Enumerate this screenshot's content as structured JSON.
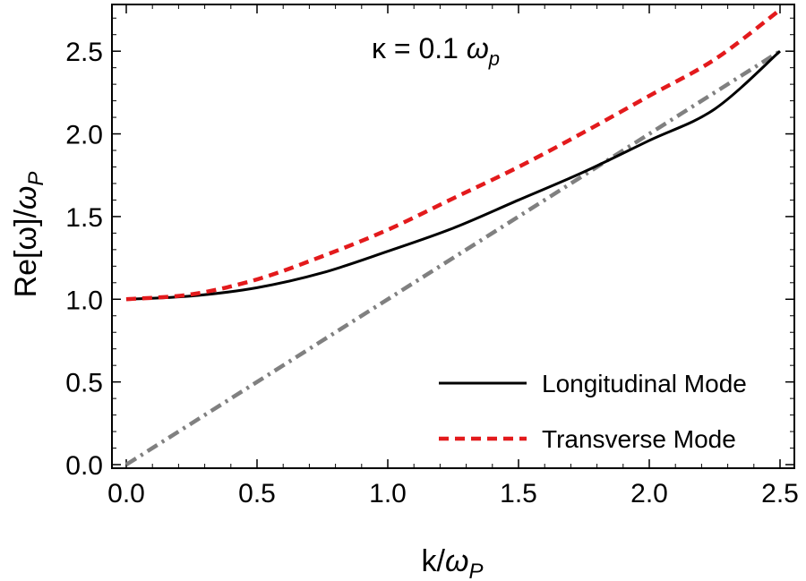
{
  "chart_data": {
    "type": "line",
    "xlabel_main": "k/",
    "xlabel_sym": "ω",
    "xlabel_sub": "P",
    "ylabel_main": "Re[ω]/",
    "ylabel_sym": "ω",
    "ylabel_sub": "P",
    "annotation": {
      "prefix": "κ = 0.1 ",
      "sym": "ω",
      "sub": "p"
    },
    "xlim": [
      0,
      2.5
    ],
    "ylim": [
      0,
      2.75
    ],
    "xticks": [
      "0.0",
      "0.5",
      "1.0",
      "1.5",
      "2.0",
      "2.5"
    ],
    "yticks": [
      "0.0",
      "0.5",
      "1.0",
      "1.5",
      "2.0",
      "2.5"
    ],
    "grid": false,
    "legend_position": "bottom-right",
    "series": [
      {
        "name": "Longitudinal Mode",
        "color": "#000000",
        "style": "solid",
        "x": [
          0,
          0.25,
          0.5,
          0.75,
          1.0,
          1.25,
          1.5,
          1.75,
          2.0,
          2.25,
          2.5
        ],
        "y": [
          1.0,
          1.02,
          1.07,
          1.16,
          1.29,
          1.43,
          1.6,
          1.77,
          1.96,
          2.15,
          2.5
        ]
      },
      {
        "name": "Transverse Mode",
        "color": "#e31a1c",
        "style": "dashed",
        "x": [
          0,
          0.25,
          0.5,
          0.75,
          1.0,
          1.25,
          1.5,
          1.75,
          2.0,
          2.25,
          2.5
        ],
        "y": [
          1.0,
          1.03,
          1.12,
          1.26,
          1.42,
          1.61,
          1.8,
          2.01,
          2.23,
          2.45,
          2.75
        ]
      },
      {
        "color": "#808080",
        "style": "dashdot",
        "x": [
          0,
          2.5
        ],
        "y": [
          0,
          2.5
        ]
      }
    ]
  }
}
